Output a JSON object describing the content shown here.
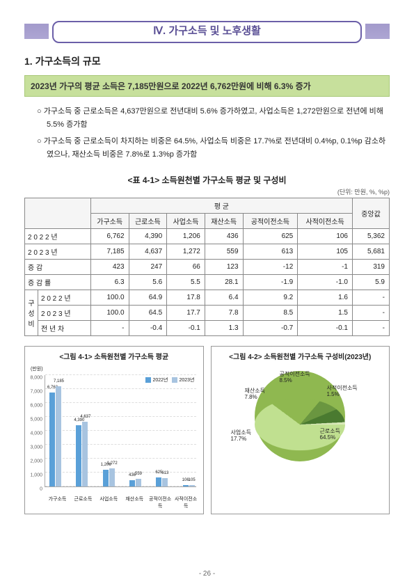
{
  "header": {
    "title": "Ⅳ. 가구소득 및 노후생활"
  },
  "h1": "1. 가구소득의 규모",
  "highlight": "2023년 가구의 평균 소득은 7,185만원으로 2022년 6,762만원에 비해 6.3% 증가",
  "bullets": [
    "가구소득 중 근로소득은 4,637만원으로 전년대비 5.6% 증가하였고, 사업소득은 1,272만원으로 전년에 비해 5.5% 증가함",
    "가구소득 중 근로소득이 차지하는 비중은 64.5%, 사업소득 비중은 17.7%로 전년대비 0.4%p, 0.1%p 감소하였으나, 재산소득 비중은 7.8%로 1.3%p 증가함"
  ],
  "table": {
    "caption": "<표 4-1> 소득원천별 가구소득 평균 및 구성비",
    "unit": "(단위: 만원, %, %p)",
    "head1": [
      "",
      "평 균",
      "중앙값"
    ],
    "head2": [
      "가구소득",
      "근로소득",
      "사업소득",
      "재산소득",
      "공적이전소득",
      "사적이전소득"
    ],
    "rows": [
      {
        "label": "2 0 2 2  년",
        "cells": [
          "6,762",
          "4,390",
          "1,206",
          "436",
          "625",
          "106",
          "5,362"
        ]
      },
      {
        "label": "2 0 2 3  년",
        "cells": [
          "7,185",
          "4,637",
          "1,272",
          "559",
          "613",
          "105",
          "5,681"
        ]
      },
      {
        "label": "증        감",
        "cells": [
          "423",
          "247",
          "66",
          "123",
          "-12",
          "-1",
          "319"
        ]
      },
      {
        "label": "증  감  률",
        "cells": [
          "6.3",
          "5.6",
          "5.5",
          "28.1",
          "-1.9",
          "-1.0",
          "5.9"
        ]
      },
      {
        "label": "2 0 2 2 년",
        "cells": [
          "100.0",
          "64.9",
          "17.8",
          "6.4",
          "9.2",
          "1.6",
          "-"
        ],
        "g": "구"
      },
      {
        "label": "2 0 2 3 년",
        "cells": [
          "100.0",
          "64.5",
          "17.7",
          "7.8",
          "8.5",
          "1.5",
          "-"
        ],
        "g": "성"
      },
      {
        "label": "전  년  차",
        "cells": [
          "-",
          "-0.4",
          "-0.1",
          "1.3",
          "-0.7",
          "-0.1",
          "-"
        ],
        "g": "비"
      }
    ]
  },
  "chart1": {
    "title": "<그림 4-1> 소득원천별 가구소득 평균",
    "ylabel": "(만원)",
    "ymax": 8000,
    "yticks": [
      0,
      1000,
      2000,
      3000,
      4000,
      5000,
      6000,
      7000,
      8000
    ],
    "legend": [
      {
        "label": "2022년",
        "color": "#5aa0d8"
      },
      {
        "label": "2023년",
        "color": "#a8c4e0"
      }
    ],
    "cats": [
      "가구소득",
      "근로소득",
      "사업소득",
      "재산소득",
      "공적이전소득",
      "사적이전소득"
    ],
    "data": [
      [
        6762,
        7185
      ],
      [
        4390,
        4637
      ],
      [
        1206,
        1272
      ],
      [
        436,
        559
      ],
      [
        625,
        613
      ],
      [
        106,
        105
      ]
    ],
    "colors": [
      "#5aa0d8",
      "#a8c4e0"
    ]
  },
  "chart2": {
    "title": "<그림 4-2> 소득원천별 가구소득 구성비(2023년)",
    "slices": [
      {
        "label": "근로소득",
        "sub": "64.5%",
        "value": 64.5,
        "color": "#c0e090"
      },
      {
        "label": "사업소득",
        "sub": "17.7%",
        "value": 17.7,
        "color": "#8fb850"
      },
      {
        "label": "재산소득",
        "sub": "7.8%",
        "value": 7.8,
        "color": "#6a9640"
      },
      {
        "label": "공적이전소득",
        "sub": "8.5%",
        "value": 8.5,
        "color": "#4a7a30"
      },
      {
        "label": "사적이전소득",
        "sub": "1.5%",
        "value": 1.5,
        "color": "#d8e8b8"
      }
    ]
  },
  "pagenum": "- 26 -"
}
